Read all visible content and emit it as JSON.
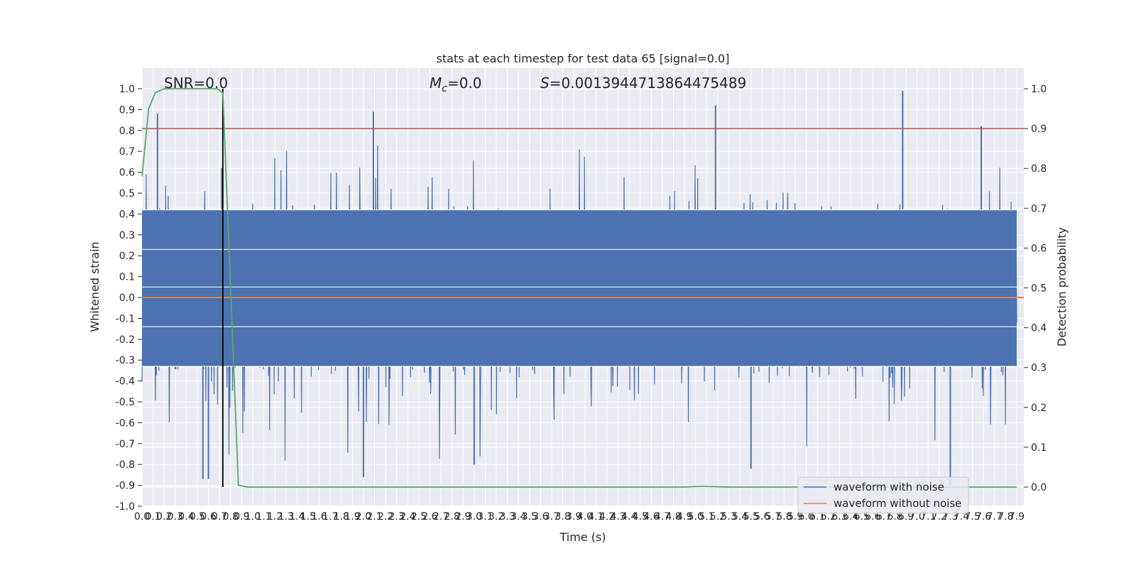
{
  "chart_data": {
    "type": "line",
    "title": "stats at each timestep for test data 65 [signal=0.0]",
    "xlabel": "Time (s)",
    "ylabel_left": "Whitened strain",
    "ylabel_right": "Detection probability",
    "xlim": [
      0.0,
      7.9
    ],
    "ylim_left": [
      -1.0,
      1.0
    ],
    "ylim_right": [
      0.0,
      1.0
    ],
    "x_tick_labels": [
      "0.0",
      "0.1",
      "0.2",
      "0.3",
      "0.4",
      "0.5",
      "0.6",
      "0.7",
      "0.8",
      "0.9",
      "1.0",
      "1.1",
      "1.2",
      "1.3",
      "1.4",
      "1.5",
      "1.6",
      "1.7",
      "1.8",
      "1.9",
      "2.0",
      "2.1",
      "2.2",
      "2.3",
      "2.4",
      "2.5",
      "2.6",
      "2.7",
      "2.8",
      "2.9",
      "3.0",
      "3.1",
      "3.2",
      "3.3",
      "3.4",
      "3.5",
      "3.6",
      "3.7",
      "3.8",
      "3.9",
      "4.0",
      "4.1",
      "4.2",
      "4.3",
      "4.4",
      "4.5",
      "4.6",
      "4.7",
      "4.8",
      "4.9",
      "5.0",
      "5.1",
      "5.2",
      "5.3",
      "5.4",
      "5.5",
      "5.6",
      "5.7",
      "5.8",
      "5.9",
      "6.0",
      "6.1",
      "6.2",
      "6.3",
      "6.4",
      "6.5",
      "6.6",
      "6.7",
      "6.8",
      "6.9",
      "7.0",
      "7.1",
      "7.2",
      "7.3",
      "7.4",
      "7.5",
      "7.6",
      "7.7",
      "7.8",
      "7.9"
    ],
    "y_tick_labels_left": [
      "-1.0",
      "-0.9",
      "-0.8",
      "-0.7",
      "-0.6",
      "-0.5",
      "-0.4",
      "-0.3",
      "-0.2",
      "-0.1",
      "0.0",
      "0.1",
      "0.2",
      "0.3",
      "0.4",
      "0.5",
      "0.6",
      "0.7",
      "0.8",
      "0.9",
      "1.0"
    ],
    "y_tick_labels_right": [
      "0.0",
      "0.1",
      "0.2",
      "0.3",
      "0.4",
      "0.5",
      "0.6",
      "0.7",
      "0.8",
      "0.9",
      "1.0"
    ],
    "annotations": {
      "snr": "SNR=0.0",
      "mc_symbol": "M",
      "mc_subscript": "c",
      "mc_value": "=0.0",
      "s_symbol": "S",
      "s_value": "=0.0013944713864475489"
    },
    "legend": {
      "position": "lower-right",
      "entries": [
        "waveform with noise",
        "waveform without noise"
      ]
    },
    "threshold": {
      "axis": "right",
      "value": 0.9,
      "color": "#c44e52"
    },
    "event_marker": {
      "x": 0.73,
      "color": "#000000"
    },
    "series": [
      {
        "name": "waveform with noise",
        "axis": "left",
        "color": "#4c72b0",
        "description": "noise band roughly within ±0.45 with spikes",
        "spikes": [
          {
            "x": 0.14,
            "y": 0.88
          },
          {
            "x": 0.72,
            "y": 0.62
          },
          {
            "x": 2.09,
            "y": 0.89
          },
          {
            "x": 5.18,
            "y": 0.92
          },
          {
            "x": 6.87,
            "y": 0.99
          },
          {
            "x": 7.58,
            "y": 0.82
          },
          {
            "x": 0.55,
            "y": -0.87
          },
          {
            "x": 0.6,
            "y": -0.87
          },
          {
            "x": 2.0,
            "y": -0.86
          },
          {
            "x": 7.3,
            "y": -0.9
          },
          {
            "x": 5.5,
            "y": -0.82
          },
          {
            "x": 3.0,
            "y": -0.8
          }
        ]
      },
      {
        "name": "waveform without noise",
        "axis": "left",
        "color": "#dd8452",
        "x": [
          0.0,
          7.9
        ],
        "y": [
          0.0,
          0.0
        ]
      },
      {
        "name": "detection probability",
        "axis": "right",
        "color": "#55a868",
        "x": [
          0.0,
          0.06,
          0.12,
          0.2,
          0.3,
          0.4,
          0.5,
          0.6,
          0.68,
          0.73,
          0.8,
          0.87,
          0.95,
          1.05,
          2.0,
          3.0,
          4.0,
          4.9,
          5.05,
          5.3,
          5.6,
          6.0,
          7.0,
          7.9
        ],
        "y": [
          0.78,
          0.95,
          0.99,
          1.0,
          1.0,
          1.0,
          1.0,
          1.0,
          1.0,
          0.99,
          0.5,
          0.005,
          0.0,
          0.0,
          0.0,
          0.0,
          0.0,
          0.0,
          0.002,
          0.0,
          0.0,
          0.0,
          0.0,
          0.0
        ]
      }
    ]
  }
}
